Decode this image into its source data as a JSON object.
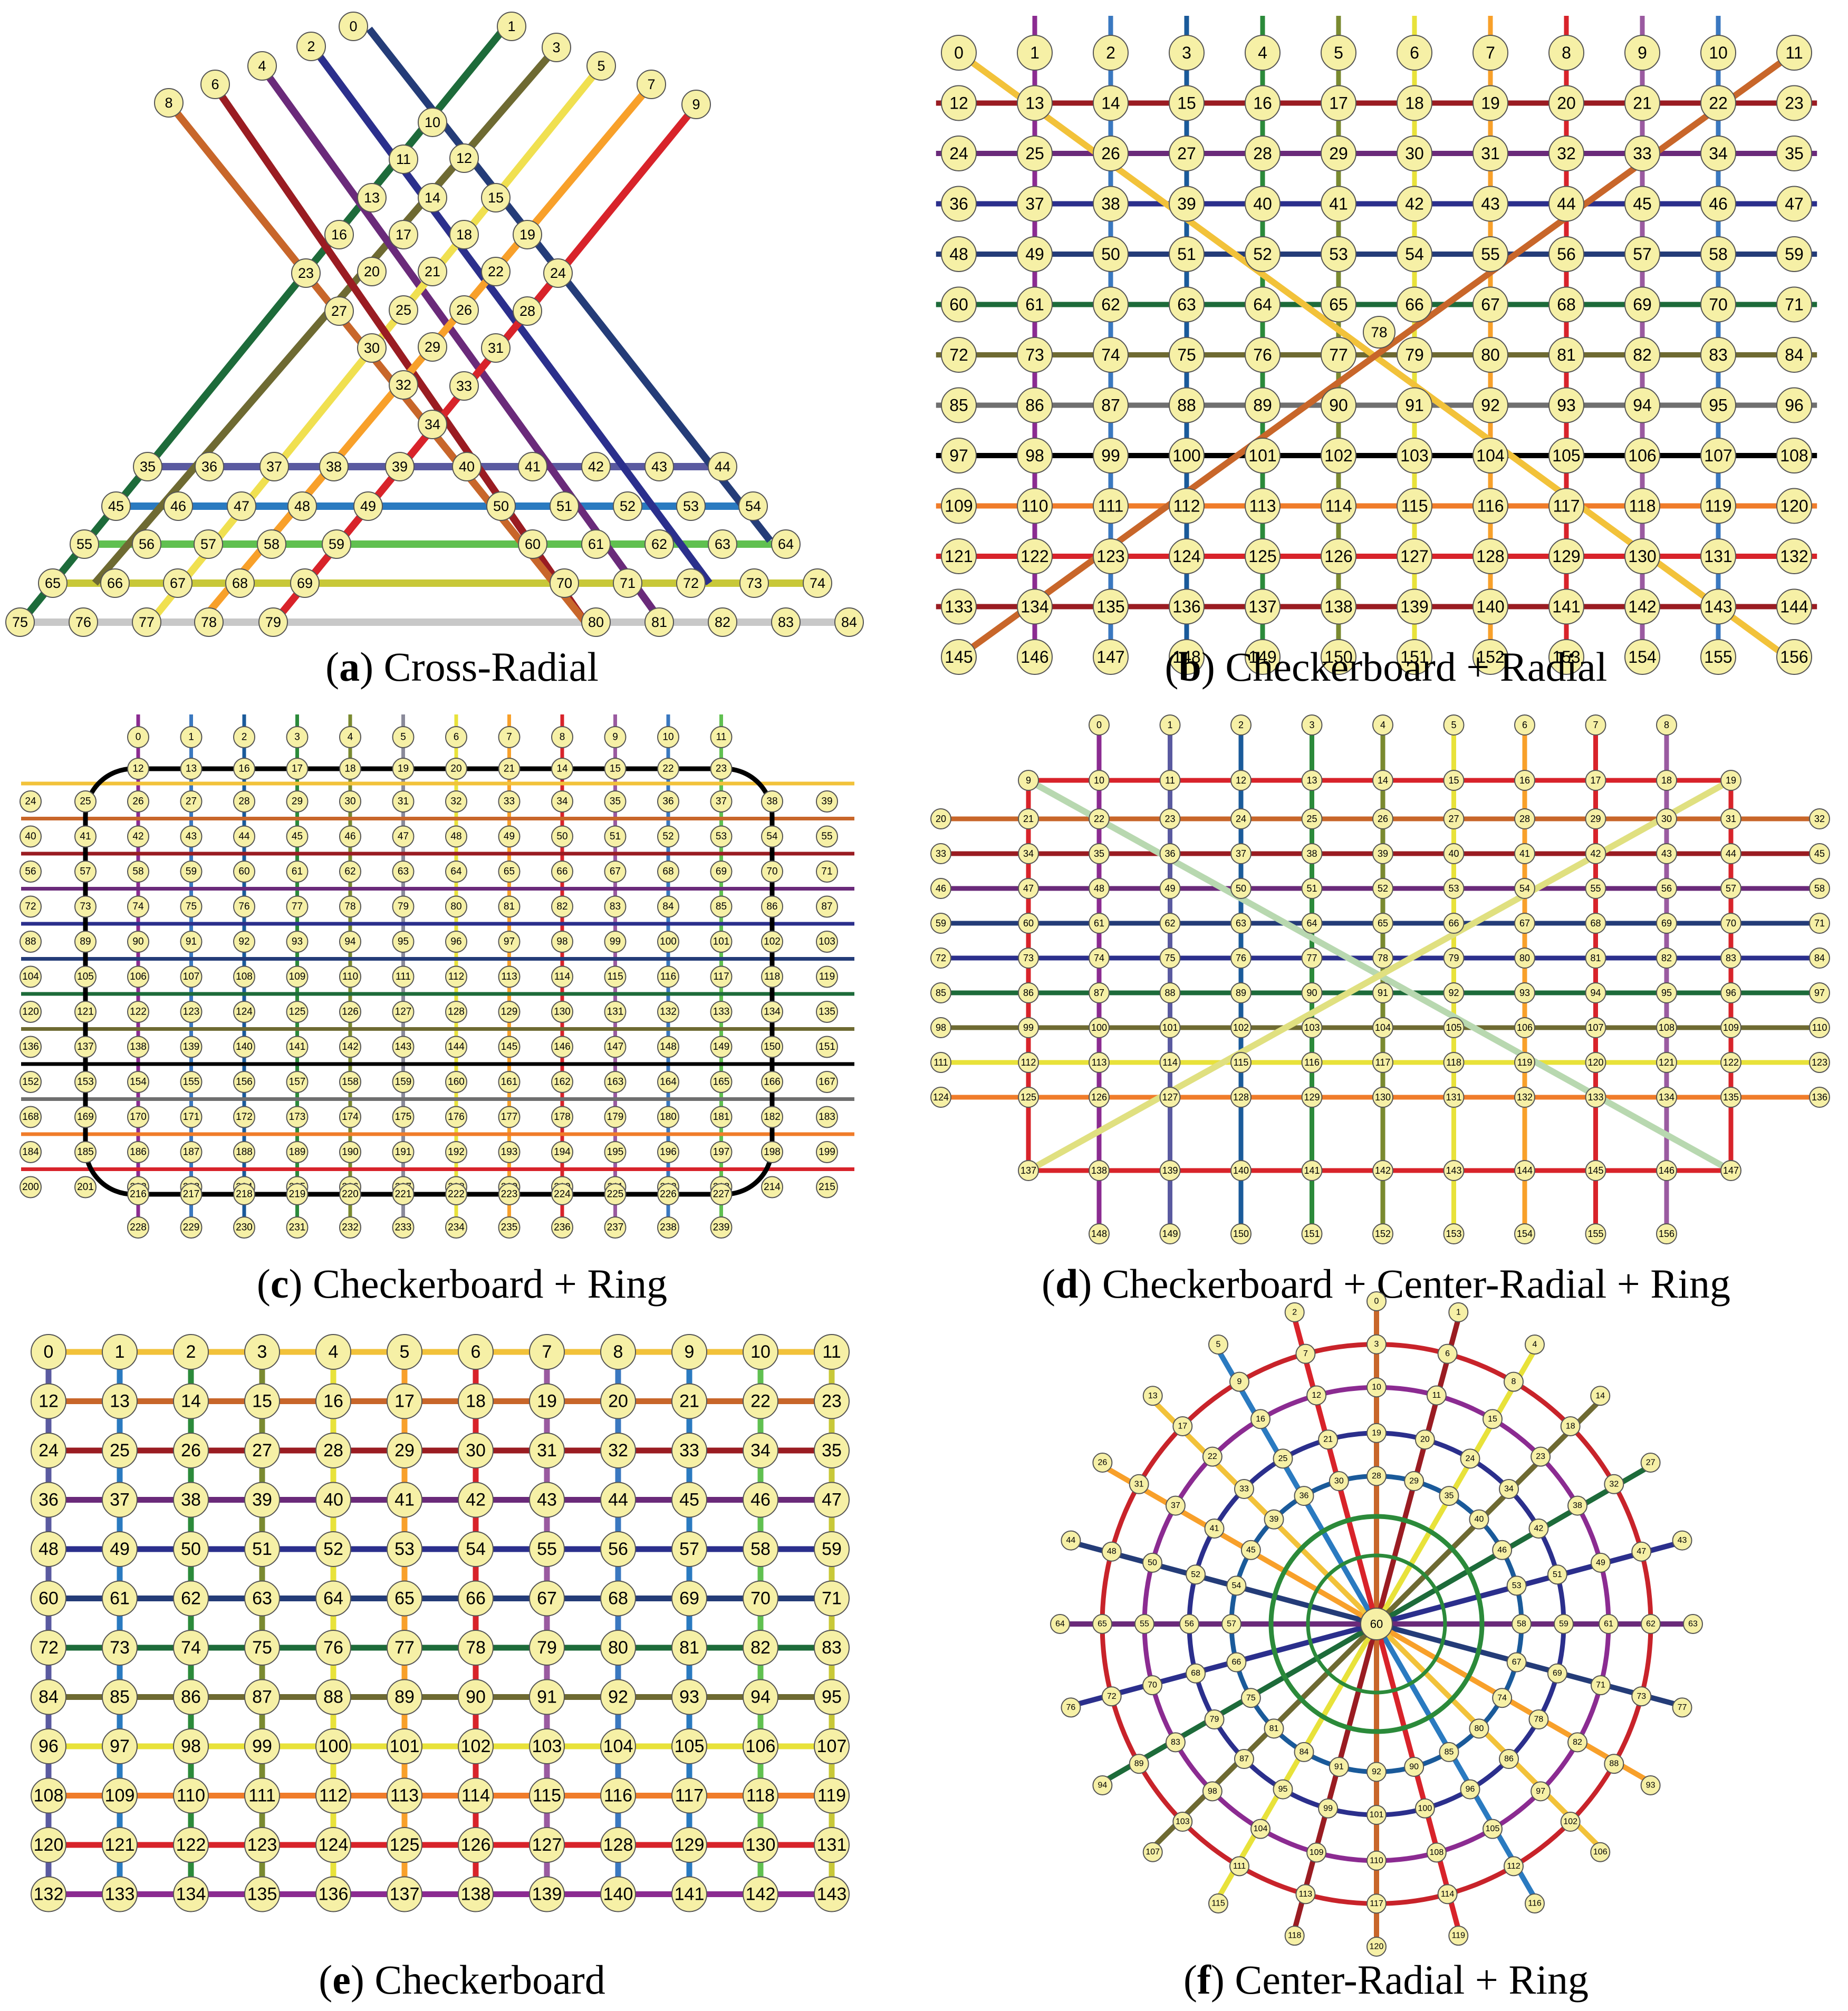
{
  "panels": [
    {
      "id": "a",
      "letter": "a",
      "caption": "Cross-Radial"
    },
    {
      "id": "b",
      "letter": "b",
      "caption": "Checkerboard + Radial"
    },
    {
      "id": "c",
      "letter": "c",
      "caption": "Checkerboard + Ring"
    },
    {
      "id": "d",
      "letter": "d",
      "caption": "Checkerboard + Center-Radial + Ring"
    },
    {
      "id": "e",
      "letter": "e",
      "caption": "Checkerboard"
    },
    {
      "id": "f",
      "letter": "f",
      "caption": "Center-Radial + Ring"
    }
  ],
  "palette": {
    "node_fill": "#f6f0a6",
    "node_stroke": "#555555",
    "line_colors": [
      "#f2c23a",
      "#c8662a",
      "#9a1c22",
      "#6a2a7a",
      "#2b2f8c",
      "#243c78",
      "#1d6b3a",
      "#6e6a32",
      "#6f6f6f",
      "#000000",
      "#f07c2a",
      "#d8232a",
      "#8b2b91",
      "#e8e23a",
      "#2a7ac0",
      "#7a8a30",
      "#5a5aa0",
      "#60c050",
      "#c8c838",
      "#c8c8c8",
      "#1a5a9a",
      "#2b8a3a",
      "#f8a02a",
      "#f0e050",
      "#9a5aa0",
      "#3a78c0"
    ]
  }
}
